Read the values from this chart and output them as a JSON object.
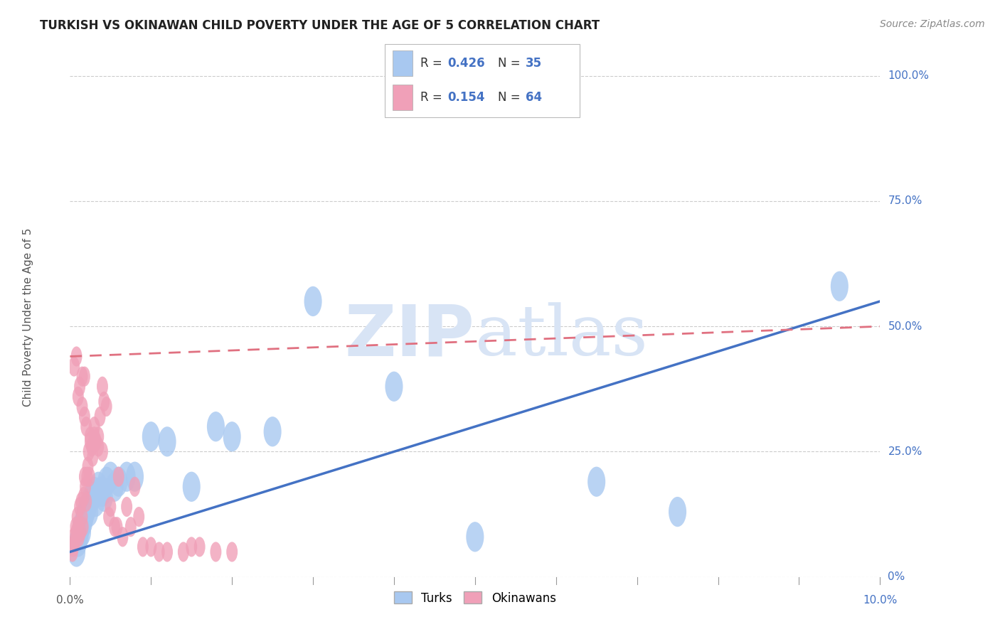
{
  "title": "TURKISH VS OKINAWAN CHILD POVERTY UNDER THE AGE OF 5 CORRELATION CHART",
  "source": "Source: ZipAtlas.com",
  "ylabel": "Child Poverty Under the Age of 5",
  "legend_turks_r": "0.426",
  "legend_turks_n": "35",
  "legend_okinawans_r": "0.154",
  "legend_okinawans_n": "64",
  "turk_color": "#A8C8F0",
  "okinawan_color": "#F0A0B8",
  "turk_line_color": "#4472C4",
  "okinawan_line_color": "#E07080",
  "background_color": "#FFFFFF",
  "grid_color": "#CCCCCC",
  "watermark_color": "#D8E4F5",
  "title_color": "#222222",
  "ytick_color": "#4472C4",
  "turks_x": [
    0.08,
    0.1,
    0.12,
    0.14,
    0.15,
    0.17,
    0.18,
    0.2,
    0.22,
    0.24,
    0.27,
    0.3,
    0.32,
    0.35,
    0.38,
    0.4,
    0.42,
    0.45,
    0.5,
    0.55,
    0.6,
    0.7,
    0.8,
    1.0,
    1.2,
    1.5,
    1.8,
    2.0,
    2.5,
    3.0,
    4.0,
    5.0,
    6.5,
    7.5,
    9.5
  ],
  "turks_y": [
    5,
    7,
    8,
    10,
    9,
    11,
    12,
    13,
    14,
    13,
    16,
    17,
    15,
    18,
    17,
    17,
    16,
    19,
    20,
    18,
    19,
    20,
    20,
    28,
    27,
    18,
    30,
    28,
    29,
    55,
    38,
    8,
    19,
    13,
    58
  ],
  "okinawans_x": [
    0.03,
    0.04,
    0.05,
    0.06,
    0.07,
    0.08,
    0.09,
    0.1,
    0.11,
    0.12,
    0.13,
    0.14,
    0.15,
    0.16,
    0.17,
    0.18,
    0.19,
    0.2,
    0.21,
    0.22,
    0.23,
    0.24,
    0.25,
    0.27,
    0.28,
    0.3,
    0.32,
    0.35,
    0.37,
    0.4,
    0.42,
    0.45,
    0.48,
    0.5,
    0.55,
    0.58,
    0.6,
    0.65,
    0.7,
    0.75,
    0.8,
    0.85,
    0.9,
    1.0,
    1.1,
    1.2,
    1.4,
    1.5,
    1.6,
    1.8,
    2.0,
    0.05,
    0.08,
    0.1,
    0.12,
    0.15,
    0.18,
    0.2,
    0.25,
    0.3,
    0.35,
    0.4,
    0.15,
    0.18
  ],
  "okinawans_y": [
    5,
    6,
    8,
    7,
    10,
    9,
    12,
    10,
    8,
    14,
    9,
    15,
    12,
    10,
    16,
    20,
    18,
    15,
    20,
    22,
    25,
    20,
    28,
    26,
    24,
    30,
    27,
    28,
    32,
    38,
    35,
    34,
    12,
    14,
    10,
    10,
    20,
    8,
    14,
    10,
    18,
    12,
    6,
    6,
    5,
    5,
    5,
    6,
    6,
    5,
    5,
    42,
    44,
    36,
    38,
    34,
    32,
    30,
    27,
    28,
    26,
    25,
    40,
    40
  ],
  "turk_line_y0": 5,
  "turk_line_y10": 55,
  "okin_line_y0": 44,
  "okin_line_yend": 50,
  "okin_line_xend": 10,
  "xlim": [
    0,
    10
  ],
  "ylim": [
    0,
    105
  ]
}
